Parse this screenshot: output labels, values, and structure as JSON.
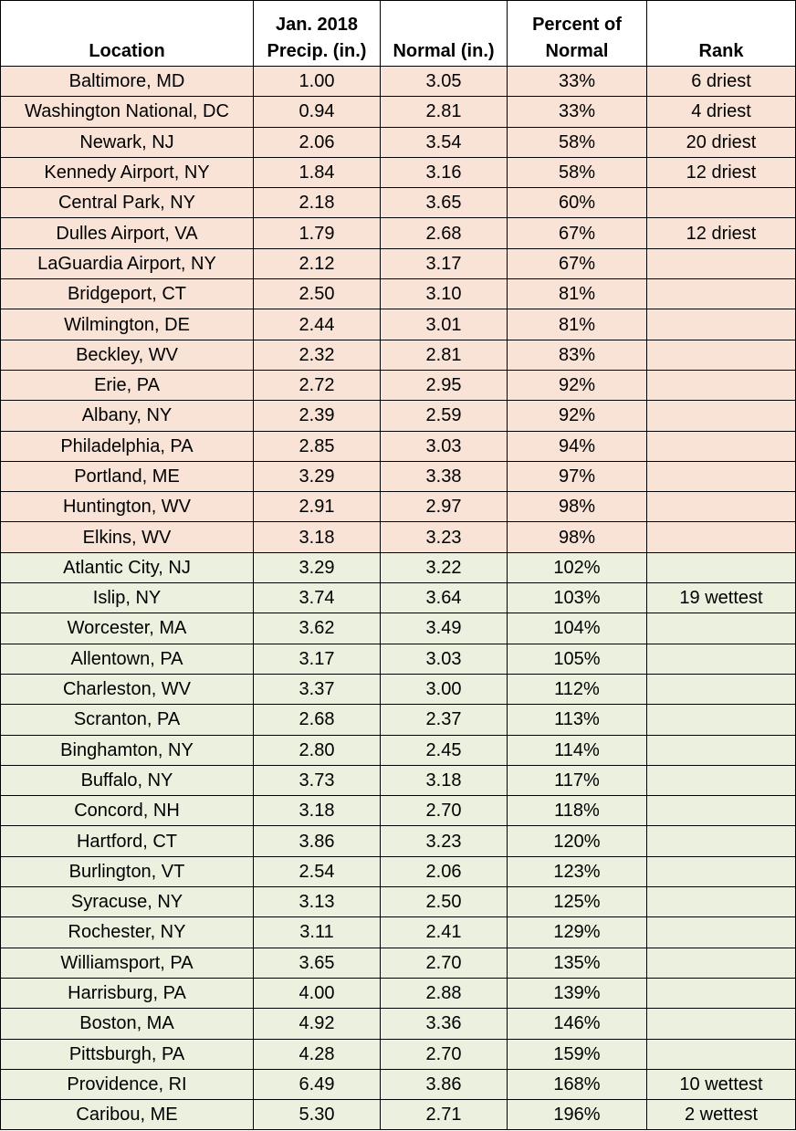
{
  "headers": {
    "location": "Location",
    "precip_line1": "Jan. 2018",
    "precip_line2": "Precip. (in.)",
    "normal": "Normal (in.)",
    "percent_line1": "Percent of",
    "percent_line2": "Normal",
    "rank": "Rank"
  },
  "colors": {
    "below_normal_row": "#f8e3d6",
    "above_normal_row": "#ebf1de"
  },
  "rows": [
    {
      "location": "Baltimore, MD",
      "precip": "1.00",
      "normal": "3.05",
      "percent": "33%",
      "rank": "6 driest",
      "category": "dry"
    },
    {
      "location": "Washington National, DC",
      "precip": "0.94",
      "normal": "2.81",
      "percent": "33%",
      "rank": "4 driest",
      "category": "dry"
    },
    {
      "location": "Newark, NJ",
      "precip": "2.06",
      "normal": "3.54",
      "percent": "58%",
      "rank": "20 driest",
      "category": "dry"
    },
    {
      "location": "Kennedy Airport, NY",
      "precip": "1.84",
      "normal": "3.16",
      "percent": "58%",
      "rank": "12 driest",
      "category": "dry"
    },
    {
      "location": "Central Park, NY",
      "precip": "2.18",
      "normal": "3.65",
      "percent": "60%",
      "rank": "",
      "category": "dry"
    },
    {
      "location": "Dulles Airport, VA",
      "precip": "1.79",
      "normal": "2.68",
      "percent": "67%",
      "rank": "12 driest",
      "category": "dry"
    },
    {
      "location": "LaGuardia Airport, NY",
      "precip": "2.12",
      "normal": "3.17",
      "percent": "67%",
      "rank": "",
      "category": "dry"
    },
    {
      "location": "Bridgeport, CT",
      "precip": "2.50",
      "normal": "3.10",
      "percent": "81%",
      "rank": "",
      "category": "dry"
    },
    {
      "location": "Wilmington, DE",
      "precip": "2.44",
      "normal": "3.01",
      "percent": "81%",
      "rank": "",
      "category": "dry"
    },
    {
      "location": "Beckley, WV",
      "precip": "2.32",
      "normal": "2.81",
      "percent": "83%",
      "rank": "",
      "category": "dry"
    },
    {
      "location": "Erie, PA",
      "precip": "2.72",
      "normal": "2.95",
      "percent": "92%",
      "rank": "",
      "category": "dry"
    },
    {
      "location": "Albany, NY",
      "precip": "2.39",
      "normal": "2.59",
      "percent": "92%",
      "rank": "",
      "category": "dry"
    },
    {
      "location": "Philadelphia, PA",
      "precip": "2.85",
      "normal": "3.03",
      "percent": "94%",
      "rank": "",
      "category": "dry"
    },
    {
      "location": "Portland, ME",
      "precip": "3.29",
      "normal": "3.38",
      "percent": "97%",
      "rank": "",
      "category": "dry"
    },
    {
      "location": "Huntington, WV",
      "precip": "2.91",
      "normal": "2.97",
      "percent": "98%",
      "rank": "",
      "category": "dry"
    },
    {
      "location": "Elkins, WV",
      "precip": "3.18",
      "normal": "3.23",
      "percent": "98%",
      "rank": "",
      "category": "dry"
    },
    {
      "location": "Atlantic City, NJ",
      "precip": "3.29",
      "normal": "3.22",
      "percent": "102%",
      "rank": "",
      "category": "wet"
    },
    {
      "location": "Islip, NY",
      "precip": "3.74",
      "normal": "3.64",
      "percent": "103%",
      "rank": "19 wettest",
      "category": "wet"
    },
    {
      "location": "Worcester, MA",
      "precip": "3.62",
      "normal": "3.49",
      "percent": "104%",
      "rank": "",
      "category": "wet"
    },
    {
      "location": "Allentown, PA",
      "precip": "3.17",
      "normal": "3.03",
      "percent": "105%",
      "rank": "",
      "category": "wet"
    },
    {
      "location": "Charleston, WV",
      "precip": "3.37",
      "normal": "3.00",
      "percent": "112%",
      "rank": "",
      "category": "wet"
    },
    {
      "location": "Scranton, PA",
      "precip": "2.68",
      "normal": "2.37",
      "percent": "113%",
      "rank": "",
      "category": "wet"
    },
    {
      "location": "Binghamton, NY",
      "precip": "2.80",
      "normal": "2.45",
      "percent": "114%",
      "rank": "",
      "category": "wet"
    },
    {
      "location": "Buffalo, NY",
      "precip": "3.73",
      "normal": "3.18",
      "percent": "117%",
      "rank": "",
      "category": "wet"
    },
    {
      "location": "Concord, NH",
      "precip": "3.18",
      "normal": "2.70",
      "percent": "118%",
      "rank": "",
      "category": "wet"
    },
    {
      "location": "Hartford, CT",
      "precip": "3.86",
      "normal": "3.23",
      "percent": "120%",
      "rank": "",
      "category": "wet"
    },
    {
      "location": "Burlington, VT",
      "precip": "2.54",
      "normal": "2.06",
      "percent": "123%",
      "rank": "",
      "category": "wet"
    },
    {
      "location": "Syracuse, NY",
      "precip": "3.13",
      "normal": "2.50",
      "percent": "125%",
      "rank": "",
      "category": "wet"
    },
    {
      "location": "Rochester, NY",
      "precip": "3.11",
      "normal": "2.41",
      "percent": "129%",
      "rank": "",
      "category": "wet"
    },
    {
      "location": "Williamsport, PA",
      "precip": "3.65",
      "normal": "2.70",
      "percent": "135%",
      "rank": "",
      "category": "wet"
    },
    {
      "location": "Harrisburg, PA",
      "precip": "4.00",
      "normal": "2.88",
      "percent": "139%",
      "rank": "",
      "category": "wet"
    },
    {
      "location": "Boston, MA",
      "precip": "4.92",
      "normal": "3.36",
      "percent": "146%",
      "rank": "",
      "category": "wet"
    },
    {
      "location": "Pittsburgh, PA",
      "precip": "4.28",
      "normal": "2.70",
      "percent": "159%",
      "rank": "",
      "category": "wet"
    },
    {
      "location": "Providence, RI",
      "precip": "6.49",
      "normal": "3.86",
      "percent": "168%",
      "rank": "10 wettest",
      "category": "wet"
    },
    {
      "location": "Caribou, ME",
      "precip": "5.30",
      "normal": "2.71",
      "percent": "196%",
      "rank": "2 wettest",
      "category": "wet"
    }
  ]
}
